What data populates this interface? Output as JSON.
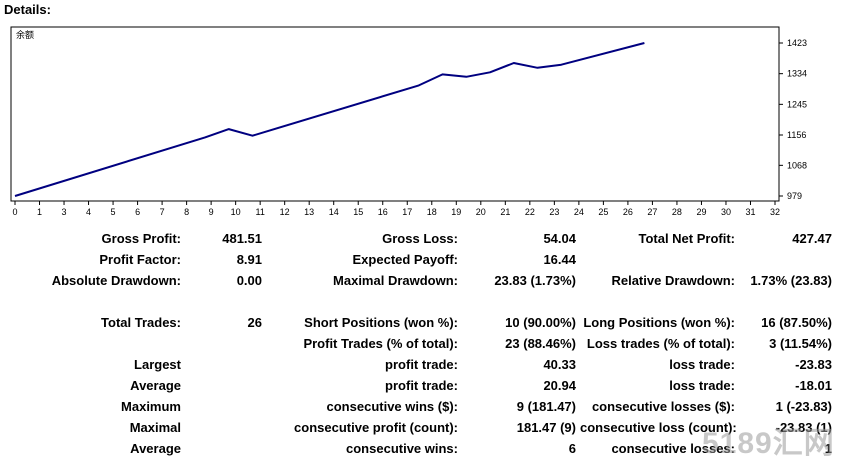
{
  "header": {
    "title": "Details:"
  },
  "chart_data": {
    "type": "line",
    "title": "余额",
    "x_ticks": [
      "0",
      "1",
      "3",
      "4",
      "5",
      "6",
      "7",
      "8",
      "9",
      "10",
      "11",
      "12",
      "13",
      "14",
      "15",
      "16",
      "17",
      "18",
      "19",
      "20",
      "21",
      "22",
      "23",
      "24",
      "25",
      "26",
      "27",
      "28",
      "29",
      "30",
      "31",
      "32"
    ],
    "y_ticks": [
      "1423",
      "1334",
      "1245",
      "1156",
      "1068",
      "979"
    ],
    "xlim": [
      0,
      32
    ],
    "ylim": [
      979,
      1423
    ],
    "series": [
      {
        "x": [
          0,
          8,
          9,
          10,
          17,
          18,
          19,
          20,
          21,
          22,
          23,
          26.5
        ],
        "y": [
          979,
          1149,
          1173,
          1154,
          1300,
          1332,
          1325,
          1338,
          1365,
          1351,
          1360,
          1423
        ]
      }
    ],
    "line_color": "#000080"
  },
  "stats": [
    {
      "text": "Gross Profit:"
    },
    {
      "text": "481.51"
    },
    {
      "text": "Gross Loss:"
    },
    {
      "text": "54.04"
    },
    {
      "text": "Total Net Profit:"
    },
    {
      "text": "427.47"
    },
    {
      "text": "Profit Factor:"
    },
    {
      "text": "8.91"
    },
    {
      "text": "Expected Payoff:"
    },
    {
      "text": "16.44"
    },
    {
      "text": "Absolute Drawdown:"
    },
    {
      "text": "0.00"
    },
    {
      "text": "Maximal Drawdown:"
    },
    {
      "text": "23.83 (1.73%)"
    },
    {
      "text": "Relative Drawdown:"
    },
    {
      "text": "1.73% (23.83)"
    },
    {
      "text": "Total Trades:"
    },
    {
      "text": "26"
    },
    {
      "text": "Short Positions (won %):"
    },
    {
      "text": "10 (90.00%)"
    },
    {
      "text": "Long Positions (won %):"
    },
    {
      "text": "16 (87.50%)"
    },
    {
      "text": "Profit Trades (% of total):"
    },
    {
      "text": "23 (88.46%)"
    },
    {
      "text": "Loss trades (% of total):"
    },
    {
      "text": "3 (11.54%)"
    },
    {
      "text": "Largest"
    },
    {
      "text": "profit trade:"
    },
    {
      "text": "40.33"
    },
    {
      "text": "loss trade:"
    },
    {
      "text": "-23.83"
    },
    {
      "text": "Average"
    },
    {
      "text": "profit trade:"
    },
    {
      "text": "20.94"
    },
    {
      "text": "loss trade:"
    },
    {
      "text": "-18.01"
    },
    {
      "text": "Maximum"
    },
    {
      "text": "consecutive wins ($):"
    },
    {
      "text": "9 (181.47)"
    },
    {
      "text": "consecutive losses ($):"
    },
    {
      "text": "1 (-23.83)"
    },
    {
      "text": "Maximal"
    },
    {
      "text": "consecutive profit (count):"
    },
    {
      "text": "181.47 (9)"
    },
    {
      "text": "consecutive loss (count):"
    },
    {
      "text": "-23.83 (1)"
    },
    {
      "text": "Average"
    },
    {
      "text": "consecutive wins:"
    },
    {
      "text": "6"
    },
    {
      "text": "consecutive losses:"
    },
    {
      "text": "1"
    }
  ],
  "watermark": "5189汇网"
}
